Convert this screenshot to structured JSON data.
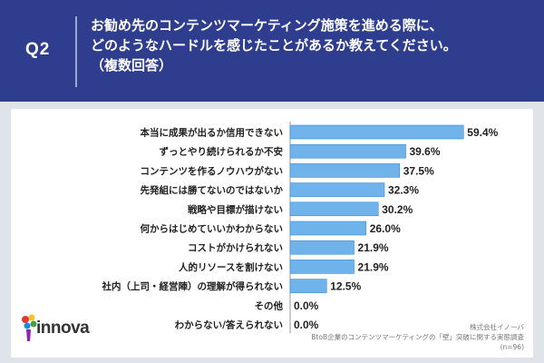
{
  "header": {
    "qnum": "Q2",
    "question_lines": [
      "お勧め先のコンテンツマーケティング施策を進める際に、",
      "どのようなハードルを感じたことがあるか教えてください。",
      "（複数回答）"
    ]
  },
  "brand": {
    "logo_text": "innova"
  },
  "source": {
    "company": "株式会社イノーバ",
    "survey": "BtoB企業のコンテンツマーケティングの「壁」突破に関する実態調査",
    "n": "(n=96)"
  },
  "colors": {
    "header_bg": "#2f3d8f",
    "bar": "#6fb3ea",
    "bar_stroke": "#3a8bd6"
  },
  "chart_data": {
    "type": "bar",
    "orientation": "horizontal",
    "title": "",
    "xlabel": "",
    "ylabel": "",
    "unit": "%",
    "xlim": [
      0,
      60
    ],
    "grid": false,
    "categories": [
      "本当に成果が出るか信用できない",
      "ずっとやり続けられるか不安",
      "コンテンツを作るノウハウがない",
      "先発組には勝てないのではないか",
      "戦略や目標が描けない",
      "何からはじめていいかわからない",
      "コストがかけられない",
      "人的リソースを割けない",
      "社内（上司・経営陣）の理解が得られない",
      "その他",
      "わからない/答えられない"
    ],
    "values": [
      59.4,
      39.6,
      37.5,
      32.3,
      30.2,
      26.0,
      21.9,
      21.9,
      12.5,
      0.0,
      0.0
    ],
    "value_labels": [
      "59.4%",
      "39.6%",
      "37.5%",
      "32.3%",
      "30.2%",
      "26.0%",
      "21.9%",
      "21.9%",
      "12.5%",
      "0.0%",
      "0.0%"
    ]
  }
}
